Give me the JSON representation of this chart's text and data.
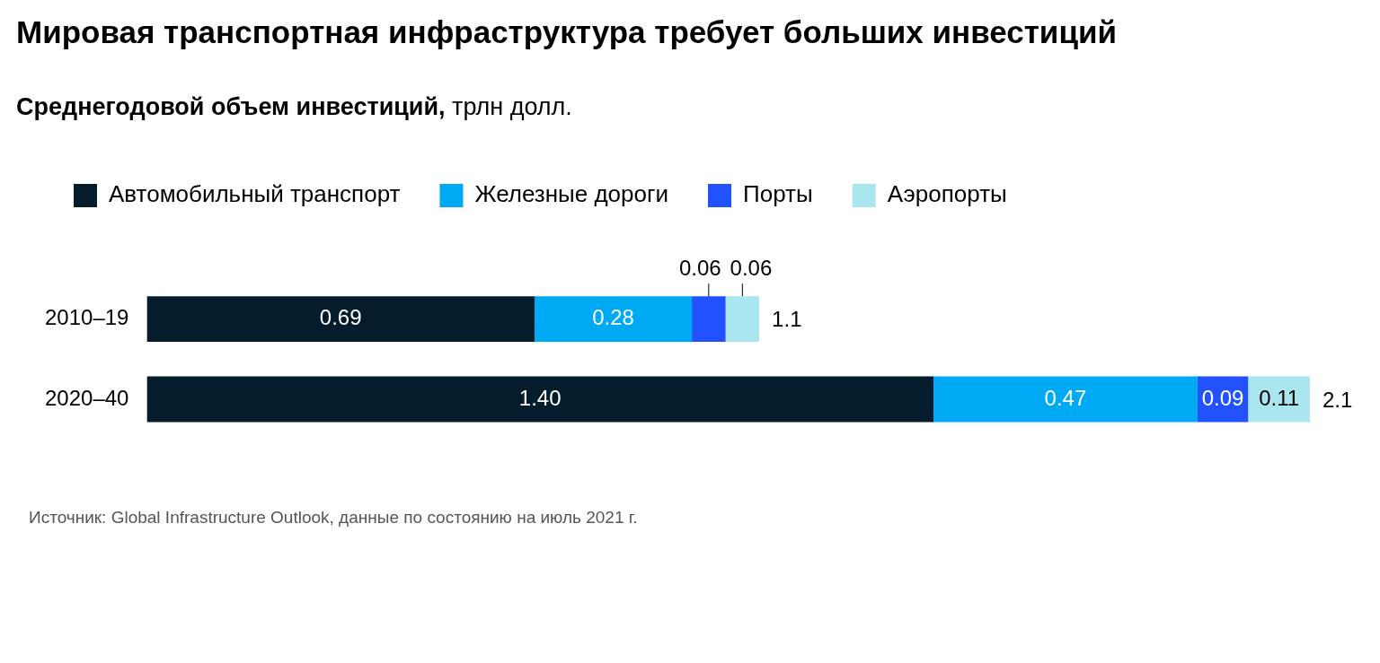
{
  "chart_data": {
    "type": "bar",
    "orientation": "horizontal",
    "stacked": true,
    "title": "Мировая транспортная инфраструктура требует больших инвестиций",
    "subtitle": "Среднегодовой объем инвестиций, трлн долл.",
    "categories": [
      "2010–19",
      "2020–40"
    ],
    "series": [
      {
        "name": "Автомобильный транспорт",
        "color": "#051c2c",
        "values": [
          0.69,
          1.4
        ],
        "value_labels": [
          "0.69",
          "1.40"
        ]
      },
      {
        "name": "Железные дороги",
        "color": "#00a9f4",
        "values": [
          0.28,
          0.47
        ],
        "value_labels": [
          "0.28",
          "0.47"
        ]
      },
      {
        "name": "Порты",
        "color": "#2251ff",
        "values": [
          0.06,
          0.09
        ],
        "value_labels": [
          "0.06",
          "0.09"
        ]
      },
      {
        "name": "Аэропорты",
        "color": "#aae6f0",
        "values": [
          0.06,
          0.11
        ],
        "value_labels": [
          "0.06",
          "0.11"
        ]
      }
    ],
    "totals": [
      "1.1",
      "2.1"
    ],
    "legend": "top left",
    "tick_labels": "y",
    "grid": false,
    "annotations": [
      "Источник: Global Infrastructure Outlook, данные по состоянию на июль 2021 г."
    ]
  }
}
